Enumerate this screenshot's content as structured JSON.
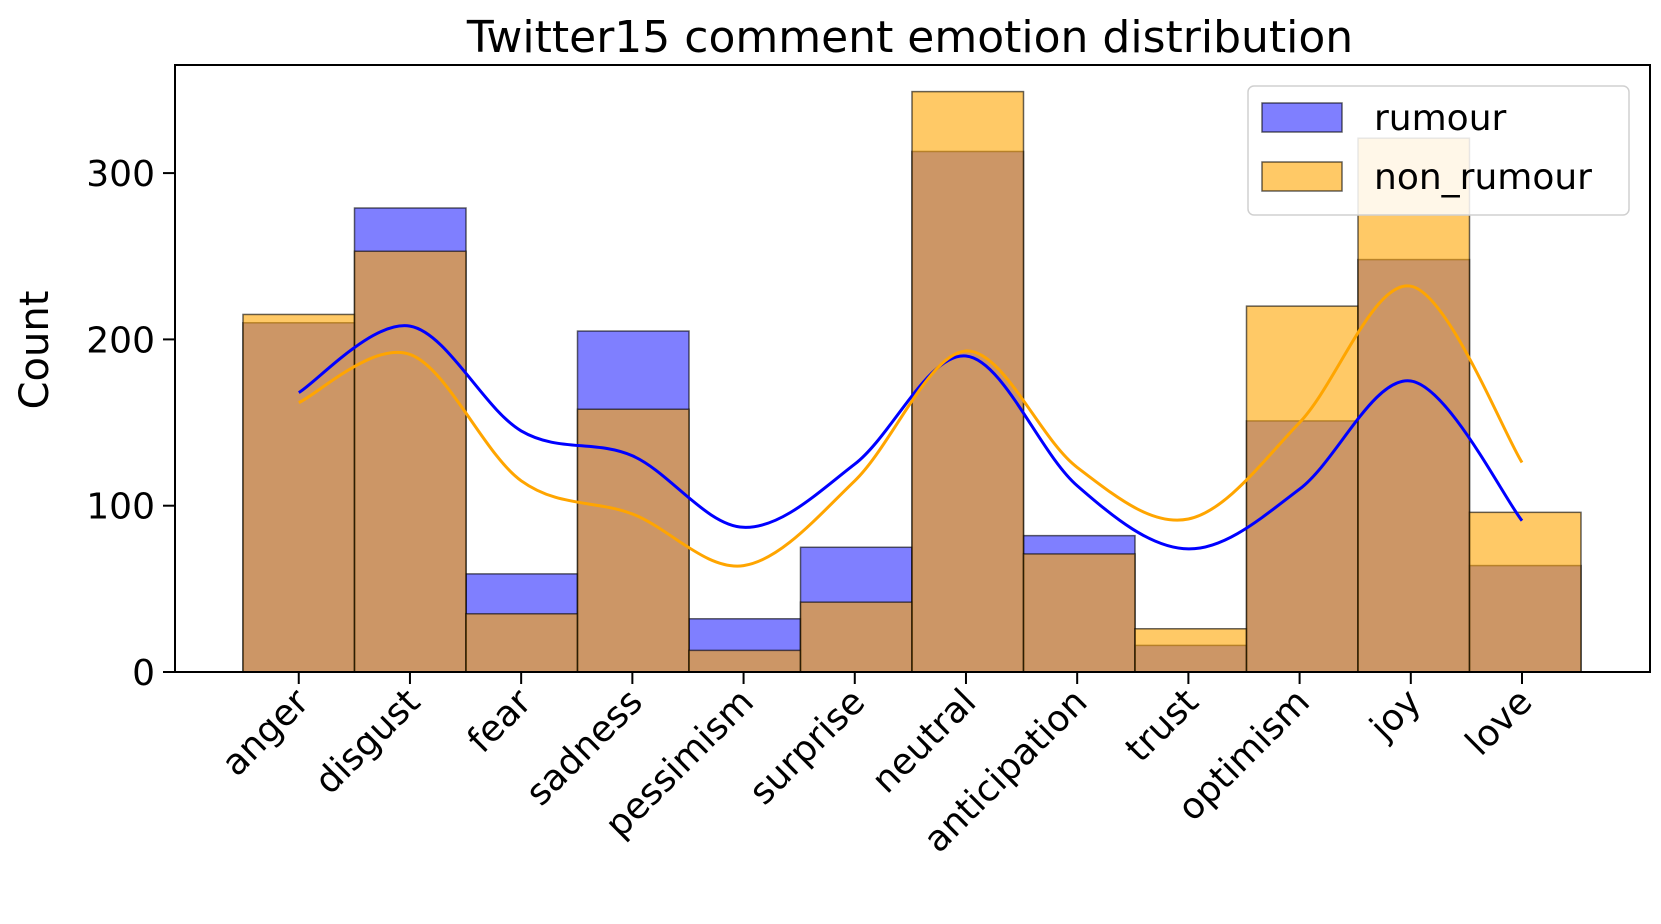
{
  "chart_data": {
    "type": "bar",
    "title": "Twitter15 comment emotion distribution",
    "xlabel": "",
    "ylabel": "Count",
    "ylim": [
      0,
      365
    ],
    "yticks": [
      0,
      100,
      200,
      300
    ],
    "legend_position": "top-right",
    "categories": [
      "anger",
      "disgust",
      "fear",
      "sadness",
      "pessimism",
      "surprise",
      "neutral",
      "anticipation",
      "trust",
      "optimism",
      "joy",
      "love"
    ],
    "series": [
      {
        "name": "rumour",
        "color": "#0000ff",
        "values": [
          210,
          279,
          59,
          205,
          32,
          75,
          313,
          82,
          16,
          151,
          248,
          64
        ],
        "kde": [
          168,
          208,
          145,
          130,
          87,
          125,
          190,
          112,
          74,
          110,
          175,
          91
        ]
      },
      {
        "name": "non_rumour",
        "color": "#ffa500",
        "values": [
          215,
          253,
          35,
          158,
          13,
          42,
          349,
          71,
          26,
          220,
          321,
          96
        ],
        "kde": [
          162,
          191,
          115,
          95,
          64,
          115,
          193,
          123,
          92,
          150,
          232,
          126
        ]
      }
    ]
  }
}
